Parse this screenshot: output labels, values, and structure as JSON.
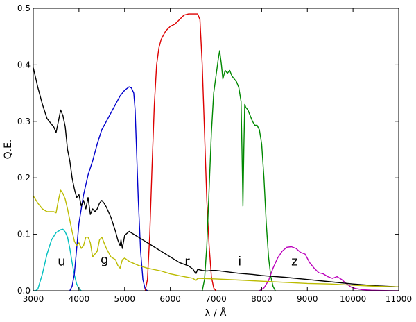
{
  "chart_data": {
    "type": "line",
    "title": "",
    "xlabel": "λ / Å",
    "ylabel": "Q.E.",
    "xlim": [
      3000,
      11000
    ],
    "ylim": [
      0,
      0.5
    ],
    "xticks": [
      "3000",
      "4000",
      "5000",
      "6000",
      "7000",
      "8000",
      "9000",
      "10000",
      "11000"
    ],
    "yticks": [
      "0.0",
      "0.1",
      "0.2",
      "0.3",
      "0.4",
      "0.5"
    ],
    "grid": false,
    "legend": "none",
    "series": [
      {
        "name": "u",
        "color": "#00bfbf",
        "points": [
          [
            3000,
            0.0
          ],
          [
            3050,
            0.0
          ],
          [
            3100,
            0.003
          ],
          [
            3200,
            0.03
          ],
          [
            3300,
            0.065
          ],
          [
            3400,
            0.09
          ],
          [
            3500,
            0.103
          ],
          [
            3600,
            0.108
          ],
          [
            3650,
            0.109
          ],
          [
            3700,
            0.104
          ],
          [
            3750,
            0.095
          ],
          [
            3800,
            0.075
          ],
          [
            3850,
            0.05
          ],
          [
            3900,
            0.028
          ],
          [
            3950,
            0.012
          ],
          [
            4000,
            0.004
          ],
          [
            4050,
            0.0
          ]
        ]
      },
      {
        "name": "g",
        "color": "#0000cc",
        "points": [
          [
            3800,
            0.0
          ],
          [
            3850,
            0.008
          ],
          [
            3900,
            0.03
          ],
          [
            3950,
            0.075
          ],
          [
            4000,
            0.12
          ],
          [
            4100,
            0.17
          ],
          [
            4200,
            0.205
          ],
          [
            4300,
            0.23
          ],
          [
            4400,
            0.26
          ],
          [
            4500,
            0.285
          ],
          [
            4600,
            0.3
          ],
          [
            4700,
            0.315
          ],
          [
            4800,
            0.33
          ],
          [
            4900,
            0.345
          ],
          [
            5000,
            0.355
          ],
          [
            5100,
            0.361
          ],
          [
            5150,
            0.359
          ],
          [
            5200,
            0.35
          ],
          [
            5230,
            0.32
          ],
          [
            5260,
            0.25
          ],
          [
            5300,
            0.16
          ],
          [
            5350,
            0.07
          ],
          [
            5400,
            0.02
          ],
          [
            5450,
            0.003
          ],
          [
            5500,
            0.0
          ]
        ]
      },
      {
        "name": "r",
        "color": "#dd0000",
        "points": [
          [
            5450,
            0.0
          ],
          [
            5500,
            0.02
          ],
          [
            5550,
            0.1
          ],
          [
            5600,
            0.22
          ],
          [
            5650,
            0.33
          ],
          [
            5700,
            0.4
          ],
          [
            5750,
            0.43
          ],
          [
            5800,
            0.445
          ],
          [
            5900,
            0.46
          ],
          [
            6000,
            0.468
          ],
          [
            6100,
            0.472
          ],
          [
            6200,
            0.48
          ],
          [
            6300,
            0.488
          ],
          [
            6400,
            0.49
          ],
          [
            6500,
            0.49
          ],
          [
            6600,
            0.49
          ],
          [
            6650,
            0.48
          ],
          [
            6700,
            0.4
          ],
          [
            6750,
            0.28
          ],
          [
            6800,
            0.16
          ],
          [
            6850,
            0.08
          ],
          [
            6900,
            0.025
          ],
          [
            6950,
            0.005
          ],
          [
            7000,
            0.0
          ]
        ]
      },
      {
        "name": "i",
        "color": "#008800",
        "points": [
          [
            6700,
            0.0
          ],
          [
            6750,
            0.02
          ],
          [
            6800,
            0.08
          ],
          [
            6850,
            0.18
          ],
          [
            6900,
            0.28
          ],
          [
            6950,
            0.35
          ],
          [
            7000,
            0.38
          ],
          [
            7050,
            0.41
          ],
          [
            7080,
            0.425
          ],
          [
            7120,
            0.4
          ],
          [
            7150,
            0.375
          ],
          [
            7200,
            0.39
          ],
          [
            7250,
            0.385
          ],
          [
            7300,
            0.39
          ],
          [
            7350,
            0.38
          ],
          [
            7400,
            0.375
          ],
          [
            7450,
            0.37
          ],
          [
            7500,
            0.36
          ],
          [
            7550,
            0.335
          ],
          [
            7570,
            0.25
          ],
          [
            7590,
            0.15
          ],
          [
            7610,
            0.25
          ],
          [
            7630,
            0.33
          ],
          [
            7650,
            0.325
          ],
          [
            7700,
            0.32
          ],
          [
            7750,
            0.31
          ],
          [
            7800,
            0.3
          ],
          [
            7850,
            0.293
          ],
          [
            7900,
            0.293
          ],
          [
            7950,
            0.285
          ],
          [
            8000,
            0.26
          ],
          [
            8050,
            0.2
          ],
          [
            8100,
            0.12
          ],
          [
            8150,
            0.06
          ],
          [
            8200,
            0.025
          ],
          [
            8250,
            0.008
          ],
          [
            8300,
            0.0
          ]
        ]
      },
      {
        "name": "z",
        "color": "#bb00bb",
        "points": [
          [
            7950,
            0.0
          ],
          [
            8050,
            0.005
          ],
          [
            8150,
            0.018
          ],
          [
            8250,
            0.04
          ],
          [
            8350,
            0.058
          ],
          [
            8450,
            0.07
          ],
          [
            8550,
            0.077
          ],
          [
            8650,
            0.078
          ],
          [
            8750,
            0.075
          ],
          [
            8850,
            0.068
          ],
          [
            8950,
            0.065
          ],
          [
            9050,
            0.05
          ],
          [
            9150,
            0.04
          ],
          [
            9250,
            0.032
          ],
          [
            9350,
            0.03
          ],
          [
            9450,
            0.025
          ],
          [
            9550,
            0.022
          ],
          [
            9650,
            0.025
          ],
          [
            9750,
            0.02
          ],
          [
            9850,
            0.013
          ],
          [
            9950,
            0.007
          ],
          [
            10050,
            0.004
          ],
          [
            10200,
            0.002
          ],
          [
            10400,
            0.001
          ],
          [
            10600,
            0.0005
          ],
          [
            10800,
            0.0002
          ],
          [
            11000,
            0.0
          ]
        ]
      },
      {
        "name": "",
        "color": "#000000",
        "points": [
          [
            3000,
            0.395
          ],
          [
            3100,
            0.36
          ],
          [
            3200,
            0.33
          ],
          [
            3300,
            0.305
          ],
          [
            3400,
            0.295
          ],
          [
            3450,
            0.29
          ],
          [
            3500,
            0.28
          ],
          [
            3550,
            0.3
          ],
          [
            3600,
            0.32
          ],
          [
            3650,
            0.31
          ],
          [
            3700,
            0.29
          ],
          [
            3750,
            0.25
          ],
          [
            3800,
            0.23
          ],
          [
            3850,
            0.2
          ],
          [
            3900,
            0.18
          ],
          [
            3950,
            0.165
          ],
          [
            4000,
            0.17
          ],
          [
            4050,
            0.15
          ],
          [
            4100,
            0.16
          ],
          [
            4150,
            0.145
          ],
          [
            4200,
            0.165
          ],
          [
            4250,
            0.135
          ],
          [
            4300,
            0.145
          ],
          [
            4350,
            0.14
          ],
          [
            4400,
            0.145
          ],
          [
            4450,
            0.155
          ],
          [
            4500,
            0.16
          ],
          [
            4550,
            0.155
          ],
          [
            4600,
            0.148
          ],
          [
            4700,
            0.13
          ],
          [
            4800,
            0.105
          ],
          [
            4850,
            0.09
          ],
          [
            4900,
            0.08
          ],
          [
            4920,
            0.09
          ],
          [
            4950,
            0.075
          ],
          [
            5000,
            0.098
          ],
          [
            5100,
            0.105
          ],
          [
            5200,
            0.1
          ],
          [
            5400,
            0.09
          ],
          [
            5600,
            0.08
          ],
          [
            5800,
            0.07
          ],
          [
            6000,
            0.06
          ],
          [
            6200,
            0.05
          ],
          [
            6400,
            0.044
          ],
          [
            6500,
            0.038
          ],
          [
            6560,
            0.03
          ],
          [
            6600,
            0.038
          ],
          [
            6700,
            0.036
          ],
          [
            6800,
            0.035
          ],
          [
            6900,
            0.036
          ],
          [
            7000,
            0.036
          ],
          [
            7200,
            0.034
          ],
          [
            7500,
            0.031
          ],
          [
            7800,
            0.029
          ],
          [
            8000,
            0.027
          ],
          [
            8500,
            0.024
          ],
          [
            9000,
            0.02
          ],
          [
            9500,
            0.016
          ],
          [
            10000,
            0.012
          ],
          [
            10500,
            0.009
          ],
          [
            11000,
            0.007
          ]
        ]
      },
      {
        "name": "",
        "color": "#bbbb00",
        "points": [
          [
            3000,
            0.168
          ],
          [
            3100,
            0.155
          ],
          [
            3200,
            0.145
          ],
          [
            3300,
            0.14
          ],
          [
            3400,
            0.14
          ],
          [
            3450,
            0.14
          ],
          [
            3500,
            0.138
          ],
          [
            3550,
            0.16
          ],
          [
            3600,
            0.178
          ],
          [
            3650,
            0.172
          ],
          [
            3700,
            0.162
          ],
          [
            3750,
            0.145
          ],
          [
            3800,
            0.125
          ],
          [
            3850,
            0.105
          ],
          [
            3900,
            0.088
          ],
          [
            3950,
            0.08
          ],
          [
            4000,
            0.085
          ],
          [
            4050,
            0.075
          ],
          [
            4100,
            0.08
          ],
          [
            4150,
            0.095
          ],
          [
            4200,
            0.095
          ],
          [
            4250,
            0.085
          ],
          [
            4300,
            0.06
          ],
          [
            4350,
            0.065
          ],
          [
            4400,
            0.07
          ],
          [
            4450,
            0.09
          ],
          [
            4500,
            0.095
          ],
          [
            4550,
            0.085
          ],
          [
            4600,
            0.075
          ],
          [
            4700,
            0.06
          ],
          [
            4800,
            0.055
          ],
          [
            4850,
            0.045
          ],
          [
            4900,
            0.04
          ],
          [
            4950,
            0.055
          ],
          [
            5000,
            0.058
          ],
          [
            5100,
            0.052
          ],
          [
            5300,
            0.045
          ],
          [
            5500,
            0.04
          ],
          [
            5800,
            0.035
          ],
          [
            6000,
            0.03
          ],
          [
            6300,
            0.025
          ],
          [
            6500,
            0.022
          ],
          [
            6560,
            0.018
          ],
          [
            6600,
            0.022
          ],
          [
            7000,
            0.021
          ],
          [
            7500,
            0.019
          ],
          [
            8000,
            0.017
          ],
          [
            8500,
            0.015
          ],
          [
            9000,
            0.013
          ],
          [
            9500,
            0.012
          ],
          [
            10000,
            0.01
          ],
          [
            10500,
            0.008
          ],
          [
            11000,
            0.007
          ]
        ]
      }
    ],
    "annotations": [
      {
        "text": "u",
        "x": 3620,
        "y": 0.045
      },
      {
        "text": "g",
        "x": 4560,
        "y": 0.048
      },
      {
        "text": "r",
        "x": 6370,
        "y": 0.045
      },
      {
        "text": "i",
        "x": 7520,
        "y": 0.045
      },
      {
        "text": "z",
        "x": 8720,
        "y": 0.045
      }
    ]
  }
}
